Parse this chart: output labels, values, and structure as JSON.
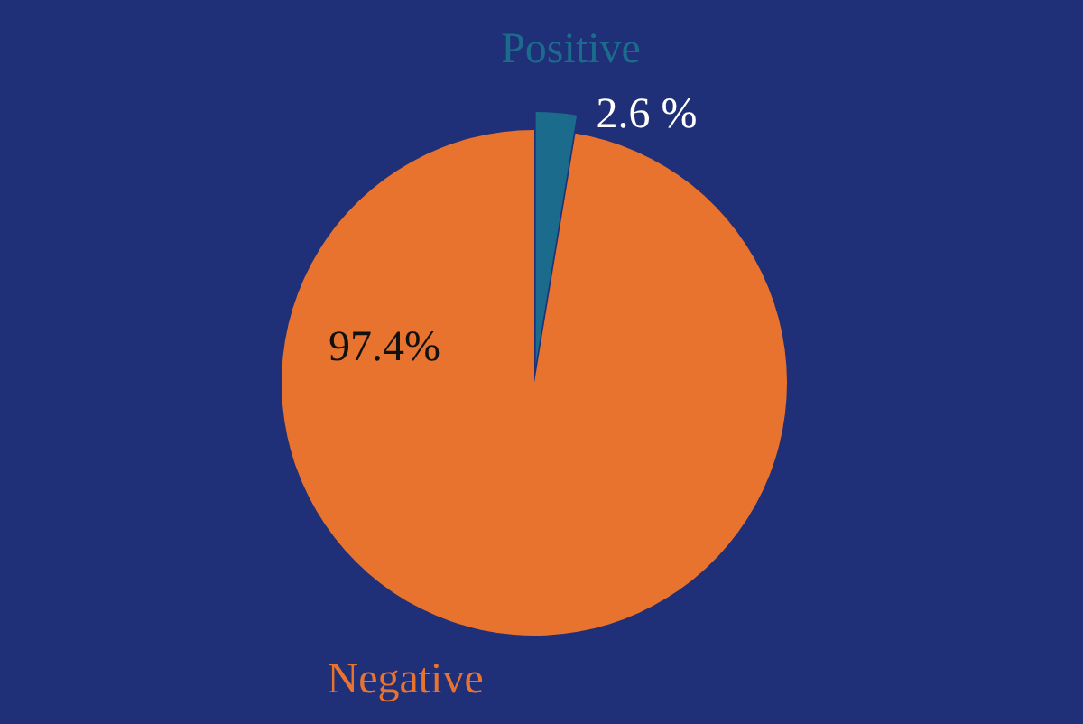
{
  "chart_data": {
    "type": "pie",
    "categories": [
      "Positive",
      "Negative"
    ],
    "values": [
      2.6,
      97.4
    ],
    "colors": [
      "#1b6b8c",
      "#e8732f"
    ],
    "value_labels": [
      "2.6 %",
      "97.4%"
    ]
  }
}
